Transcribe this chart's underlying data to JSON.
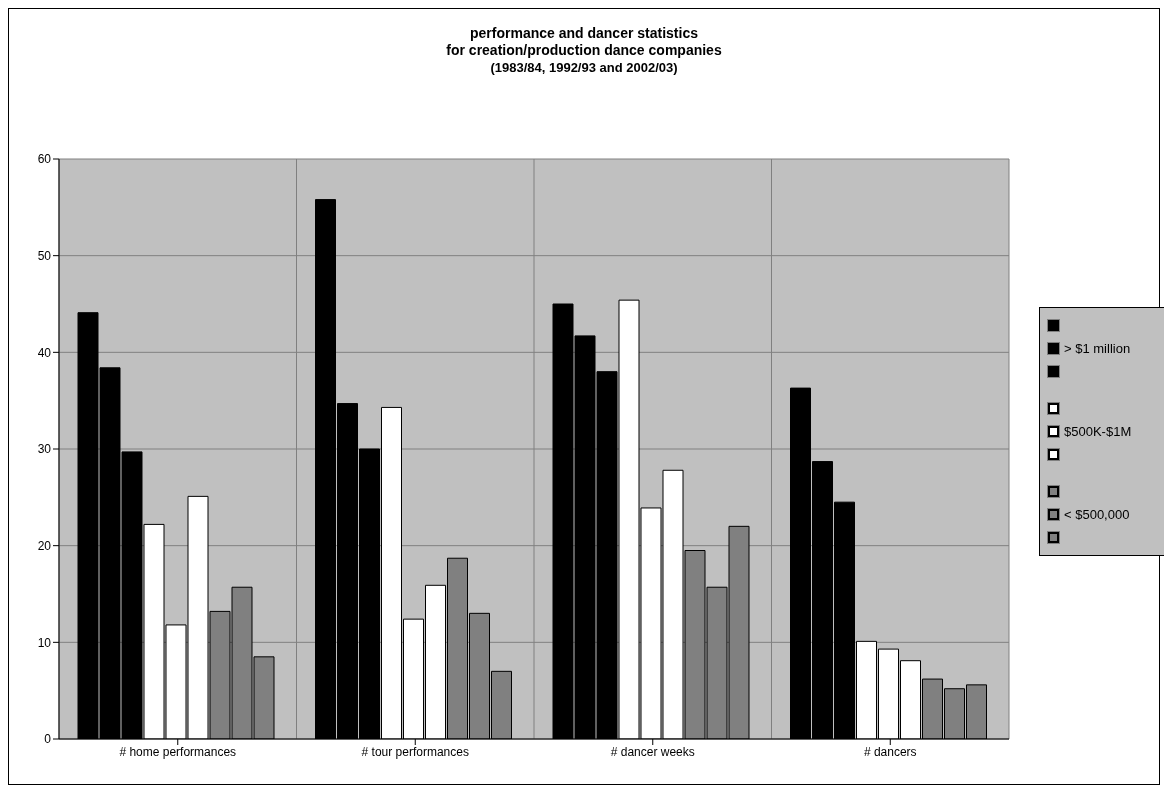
{
  "chart_data": {
    "type": "bar",
    "title": "performance and dancer statistics\nfor creation/production dance companies",
    "subtitle": "(1983/84, 1992/93 and 2002/03)",
    "categories": [
      "# home performances",
      "# tour performances",
      "# dancer weeks",
      "# dancers"
    ],
    "series": [
      {
        "color": "#000000",
        "values": [
          44.1,
          55.8,
          45.0,
          36.3
        ]
      },
      {
        "name": "> $1 million",
        "color": "#000000",
        "values": [
          38.4,
          34.7,
          41.7,
          28.7
        ]
      },
      {
        "color": "#000000",
        "values": [
          29.7,
          30.0,
          38.0,
          24.5
        ]
      },
      {
        "color": "#ffffff",
        "values": [
          22.2,
          34.3,
          45.4,
          10.1
        ]
      },
      {
        "name": "$500K-$1M",
        "color": "#ffffff",
        "values": [
          11.8,
          12.4,
          23.9,
          9.3
        ]
      },
      {
        "color": "#ffffff",
        "values": [
          25.1,
          15.9,
          27.8,
          8.1
        ]
      },
      {
        "color": "#808080",
        "values": [
          13.2,
          18.7,
          19.5,
          6.2
        ]
      },
      {
        "name": "< $500,000",
        "color": "#808080",
        "values": [
          15.7,
          13.0,
          15.7,
          5.2
        ]
      },
      {
        "color": "#808080",
        "values": [
          8.5,
          7.0,
          22.0,
          5.6
        ]
      }
    ],
    "ylim": [
      0,
      60
    ],
    "yticks": [
      0,
      10,
      20,
      30,
      40,
      50,
      60
    ],
    "grid": true,
    "legend": "right"
  }
}
